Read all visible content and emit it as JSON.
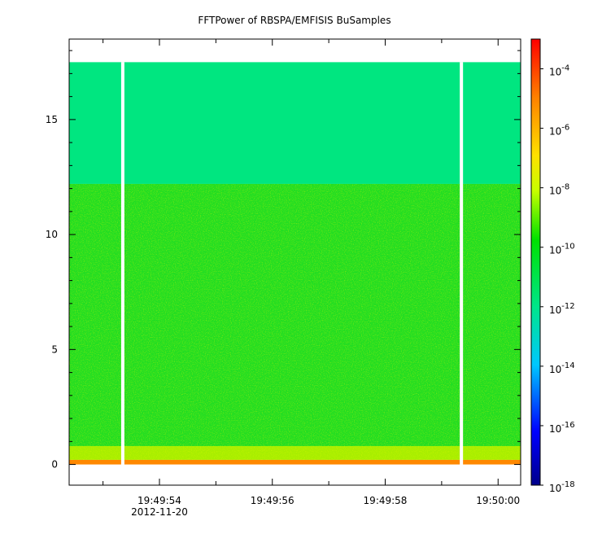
{
  "chart_data": {
    "type": "heatmap",
    "title": "FFTPower of RBSPA/EMFISIS  BuSamples",
    "x_ticks": [
      "19:49:54",
      "19:49:56",
      "19:49:58",
      "19:50:00"
    ],
    "x_sublabel": "2012-11-20",
    "x_range_seconds": [
      -1.6,
      6.4
    ],
    "x_tick_values_seconds": [
      0,
      2,
      4,
      6
    ],
    "y_ticks": [
      "0",
      "5",
      "10",
      "15"
    ],
    "y_tick_values": [
      0,
      5,
      10,
      15
    ],
    "ylim": [
      -0.9,
      18.5
    ],
    "data_extent_y": [
      0,
      17.5
    ],
    "gaps_seconds": [
      -0.65,
      5.35
    ],
    "colorbar": {
      "scale": "log",
      "range": [
        1e-18,
        0.001
      ],
      "tick_values": [
        0.0001,
        1e-06,
        1e-08,
        1e-10,
        1e-12,
        1e-14,
        1e-16,
        1e-18
      ],
      "tick_labels": [
        {
          "base": "10",
          "exp": "-4"
        },
        {
          "base": "10",
          "exp": "-6"
        },
        {
          "base": "10",
          "exp": "-8"
        },
        {
          "base": "10",
          "exp": "-10"
        },
        {
          "base": "10",
          "exp": "-12"
        },
        {
          "base": "10",
          "exp": "-14"
        },
        {
          "base": "10",
          "exp": "-16"
        },
        {
          "base": "10",
          "exp": "-18"
        }
      ],
      "colors": [
        "#00008b",
        "#0000ff",
        "#00c8ff",
        "#00e68a",
        "#00e100",
        "#c8ff00",
        "#ffe000",
        "#ff8000",
        "#ff0000"
      ]
    },
    "regions": [
      {
        "y_range": [
          12.2,
          17.5
        ],
        "typical_power": 3e-12,
        "color": "#00e680"
      },
      {
        "y_range": [
          0.8,
          12.2
        ],
        "typical_power": 3e-11,
        "color": "#22dd22"
      },
      {
        "y_range": [
          0.2,
          0.8
        ],
        "typical_power": 1e-09,
        "color": "#a8ee00"
      },
      {
        "y_range": [
          0,
          0.2
        ],
        "typical_power": 1e-07,
        "color": "#ff8800"
      }
    ]
  }
}
